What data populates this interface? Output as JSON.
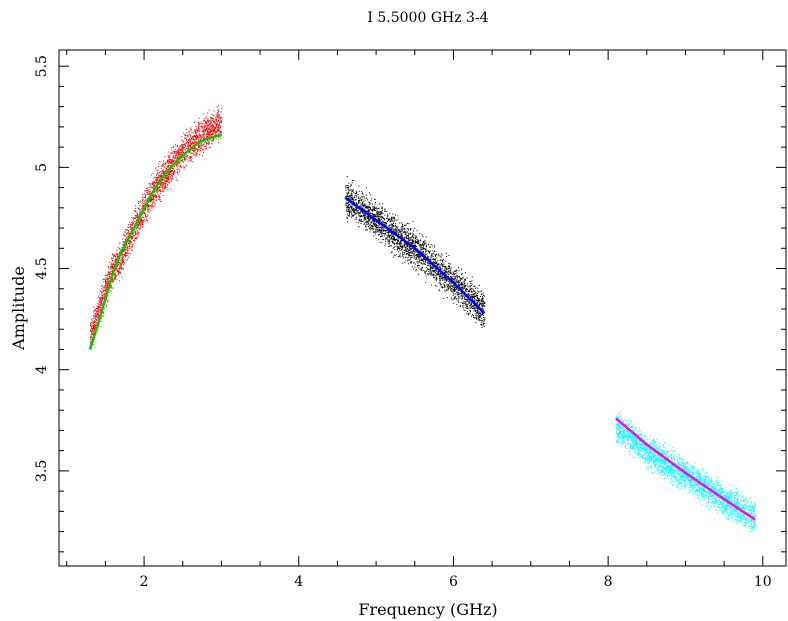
{
  "chart_data": {
    "type": "scatter",
    "title": "I 5.5000 GHz   3-4",
    "xlabel": "Frequency (GHz)",
    "ylabel": "Amplitude",
    "xlim": [
      0.9,
      10.3
    ],
    "ylim": [
      3.03,
      5.58
    ],
    "xticks": [
      {
        "value": 2,
        "label": "2"
      },
      {
        "value": 4,
        "label": "4"
      },
      {
        "value": 6,
        "label": "6"
      },
      {
        "value": 8,
        "label": "8"
      },
      {
        "value": 10,
        "label": "10"
      }
    ],
    "yticks": [
      {
        "value": 3.5,
        "label": "3.5"
      },
      {
        "value": 4,
        "label": "4"
      },
      {
        "value": 4.5,
        "label": "4.5"
      },
      {
        "value": 5,
        "label": "5"
      },
      {
        "value": 5.5,
        "label": "5.5"
      }
    ],
    "grid": false,
    "series": [
      {
        "color": "#ff0000",
        "kind": "points",
        "x": [
          1.3,
          1.4,
          1.5,
          1.6,
          1.7,
          1.8,
          1.9,
          2.0,
          2.1,
          2.2,
          2.3,
          2.4,
          2.5,
          2.6,
          2.7,
          2.8,
          2.9,
          3.0
        ],
        "y": [
          4.17,
          4.28,
          4.4,
          4.5,
          4.55,
          4.65,
          4.72,
          4.8,
          4.87,
          4.93,
          4.98,
          5.03,
          5.08,
          5.12,
          5.15,
          5.18,
          5.2,
          5.22
        ],
        "spread": 0.12
      },
      {
        "color": "#00cc00",
        "kind": "line",
        "x": [
          1.3,
          1.4,
          1.5,
          1.6,
          1.7,
          1.8,
          1.9,
          2.0,
          2.1,
          2.2,
          2.3,
          2.4,
          2.5,
          2.6,
          2.7,
          2.8,
          2.9,
          3.0
        ],
        "y": [
          4.1,
          4.22,
          4.35,
          4.48,
          4.58,
          4.65,
          4.72,
          4.8,
          4.87,
          4.93,
          4.98,
          5.02,
          5.06,
          5.09,
          5.12,
          5.14,
          5.15,
          5.16
        ]
      },
      {
        "color": "#000000",
        "kind": "points",
        "x": [
          4.6,
          5.0,
          5.5,
          6.0,
          6.4
        ],
        "y": [
          4.85,
          4.74,
          4.6,
          4.43,
          4.29
        ],
        "spread": 0.13
      },
      {
        "color": "#0000ff",
        "kind": "line",
        "x": [
          4.6,
          5.0,
          5.5,
          6.0,
          6.4
        ],
        "y": [
          4.85,
          4.74,
          4.6,
          4.43,
          4.28
        ]
      },
      {
        "color": "#00ffff",
        "kind": "points",
        "x": [
          8.1,
          8.5,
          9.0,
          9.5,
          9.9
        ],
        "y": [
          3.72,
          3.6,
          3.48,
          3.36,
          3.27
        ],
        "spread": 0.11
      },
      {
        "color": "#ff00ff",
        "kind": "line",
        "x": [
          8.1,
          8.5,
          9.0,
          9.5,
          9.9
        ],
        "y": [
          3.76,
          3.63,
          3.49,
          3.36,
          3.26
        ]
      }
    ]
  }
}
